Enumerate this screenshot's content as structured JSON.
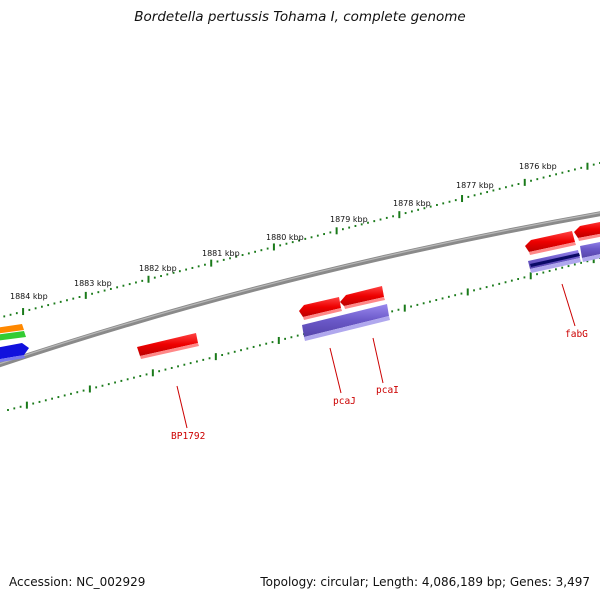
{
  "title": "Bordetella pertussis Tohama I, complete genome",
  "footer": {
    "accession": "Accession: NC_002929",
    "summary": "Topology: circular; Length: 4,086,189 bp; Genes: 3,497"
  },
  "scale_labels": [
    "1884 kbp",
    "1883 kbp",
    "1882 kbp",
    "1881 kbp",
    "1880 kbp",
    "1879 kbp",
    "1878 kbp",
    "1877 kbp",
    "1876 kbp"
  ],
  "gene_labels": [
    "BP1792",
    "pcaJ",
    "pcaI",
    "fabG"
  ],
  "colors": {
    "backbone": "#808080",
    "cds": "#ee1111",
    "rna": "#7766cc",
    "tick": "#1a7a1a",
    "label": "#cc0000",
    "orange": "#ff8800",
    "green": "#33cc33",
    "blue": "#1111dd",
    "navy": "#0a0a66"
  }
}
